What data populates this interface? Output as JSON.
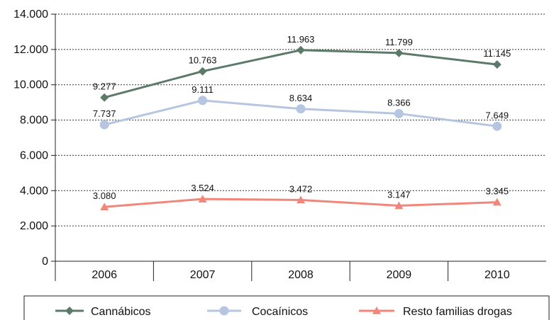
{
  "chart_data": {
    "type": "line",
    "categories": [
      "2006",
      "2007",
      "2008",
      "2009",
      "2010"
    ],
    "ylim": [
      0,
      14000
    ],
    "yticks": [
      0,
      2000,
      4000,
      6000,
      8000,
      10000,
      12000,
      14000
    ],
    "ytick_labels": [
      "0",
      "2.000",
      "4.000",
      "6.000",
      "8.000",
      "10.000",
      "12.000",
      "14.000"
    ],
    "grid": "horizontal dotted",
    "legend_position": "bottom",
    "series": [
      {
        "name": "Cannábicos",
        "values": [
          9277,
          10763,
          11963,
          11799,
          11145
        ],
        "labels": [
          "9.277",
          "10.763",
          "11.963",
          "11.799",
          "11.145"
        ],
        "color": "#5b7a69",
        "marker": "diamond"
      },
      {
        "name": "Cocaínicos",
        "values": [
          7737,
          9111,
          8634,
          8366,
          7649
        ],
        "labels": [
          "7.737",
          "9.111",
          "8.634",
          "8.366",
          "7.649"
        ],
        "color": "#b7c6e0",
        "marker": "circle"
      },
      {
        "name": "Resto familias drogas",
        "values": [
          3080,
          3524,
          3472,
          3147,
          3345
        ],
        "labels": [
          "3.080",
          "3.524",
          "3.472",
          "3.147",
          "3.345"
        ],
        "color": "#f0877a",
        "marker": "triangle"
      }
    ]
  }
}
